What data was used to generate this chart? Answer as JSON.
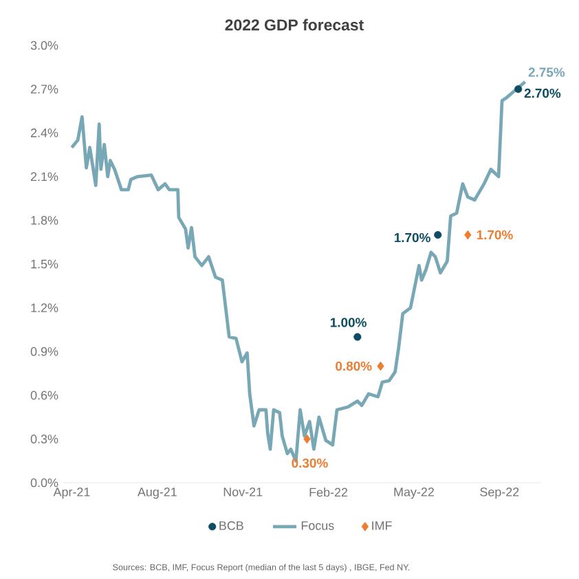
{
  "chart_data": {
    "type": "line",
    "title": "2022 GDP forecast",
    "xlim": [
      "2021-04-15",
      "2022-10-25"
    ],
    "xticks": [
      {
        "value": "2021-04-25",
        "label": "Apr-21"
      },
      {
        "value": "2021-08-03",
        "label": "Aug-21"
      },
      {
        "value": "2021-11-11",
        "label": "Nov-21"
      },
      {
        "value": "2022-02-19",
        "label": "Feb-22"
      },
      {
        "value": "2022-05-30",
        "label": "May-22"
      },
      {
        "value": "2022-09-07",
        "label": "Sep-22"
      }
    ],
    "ylim": [
      0,
      3.0
    ],
    "yticks": [
      {
        "value": 0,
        "label": "0.0%"
      },
      {
        "value": 0.3,
        "label": "0.3%"
      },
      {
        "value": 0.6,
        "label": "0.6%"
      },
      {
        "value": 0.9,
        "label": "0.9%"
      },
      {
        "value": 1.2,
        "label": "1.2%"
      },
      {
        "value": 1.5,
        "label": "1.5%"
      },
      {
        "value": 1.8,
        "label": "1.8%"
      },
      {
        "value": 2.1,
        "label": "2.1%"
      },
      {
        "value": 2.4,
        "label": "2.4%"
      },
      {
        "value": 2.7,
        "label": "2.7%"
      },
      {
        "value": 3.0,
        "label": "3.0%"
      }
    ],
    "legend": "bottom",
    "series": [
      {
        "name": "BCB",
        "type": "scatter",
        "marker": "circle",
        "color": "#0e4c62",
        "x": [
          "2022-03-25",
          "2022-06-27",
          "2022-09-29"
        ],
        "values": [
          1.0,
          1.7,
          2.7
        ],
        "value_labels": [
          "1.00%",
          "1.70%",
          "2.70%"
        ]
      },
      {
        "name": "Focus",
        "marker": "none",
        "line_style": "solid",
        "color": "#78a7b5",
        "x": [
          "2021-04-25",
          "2021-05-02",
          "2021-05-07",
          "2021-05-12",
          "2021-05-16",
          "2021-05-23",
          "2021-05-27",
          "2021-05-29",
          "2021-06-02",
          "2021-06-06",
          "2021-06-09",
          "2021-06-14",
          "2021-06-22",
          "2021-06-30",
          "2021-07-03",
          "2021-07-11",
          "2021-07-27",
          "2021-08-04",
          "2021-08-12",
          "2021-08-17",
          "2021-08-27",
          "2021-08-28",
          "2021-09-05",
          "2021-09-08",
          "2021-09-12",
          "2021-09-16",
          "2021-09-24",
          "2021-10-02",
          "2021-10-10",
          "2021-10-18",
          "2021-10-26",
          "2021-11-03",
          "2021-11-10",
          "2021-11-16",
          "2021-11-19",
          "2021-11-24",
          "2021-11-30",
          "2021-12-08",
          "2021-12-10",
          "2021-12-13",
          "2021-12-17",
          "2021-12-24",
          "2021-12-27",
          "2022-01-02",
          "2022-01-06",
          "2022-01-12",
          "2022-01-17",
          "2022-01-22",
          "2022-01-28",
          "2022-02-02",
          "2022-02-08",
          "2022-02-16",
          "2022-02-24",
          "2022-03-01",
          "2022-03-14",
          "2022-03-25",
          "2022-03-30",
          "2022-04-07",
          "2022-04-18",
          "2022-04-23",
          "2022-05-01",
          "2022-05-08",
          "2022-05-12",
          "2022-05-17",
          "2022-05-26",
          "2022-06-05",
          "2022-06-08",
          "2022-06-13",
          "2022-06-19",
          "2022-06-24",
          "2022-06-30",
          "2022-07-08",
          "2022-07-12",
          "2022-07-19",
          "2022-07-26",
          "2022-08-01",
          "2022-08-09",
          "2022-08-20",
          "2022-08-28",
          "2022-09-06",
          "2022-09-10",
          "2022-09-15",
          "2022-09-21",
          "2022-09-29",
          "2022-10-07"
        ],
        "values": [
          2.3,
          2.35,
          2.51,
          2.16,
          2.3,
          2.04,
          2.46,
          2.15,
          2.32,
          2.1,
          2.21,
          2.15,
          2.01,
          2.01,
          2.08,
          2.1,
          2.11,
          2.01,
          2.05,
          2.01,
          2.01,
          1.82,
          1.74,
          1.61,
          1.75,
          1.55,
          1.49,
          1.55,
          1.41,
          1.39,
          1.0,
          0.99,
          0.83,
          0.89,
          0.61,
          0.39,
          0.5,
          0.5,
          0.34,
          0.23,
          0.5,
          0.48,
          0.32,
          0.2,
          0.23,
          0.15,
          0.5,
          0.32,
          0.42,
          0.23,
          0.45,
          0.29,
          0.26,
          0.5,
          0.52,
          0.56,
          0.53,
          0.61,
          0.59,
          0.69,
          0.7,
          0.76,
          0.92,
          1.16,
          1.2,
          1.49,
          1.39,
          1.46,
          1.58,
          1.55,
          1.44,
          1.52,
          1.83,
          1.85,
          2.05,
          1.96,
          1.94,
          2.05,
          2.15,
          2.1,
          2.62,
          2.64,
          2.67,
          2.71,
          2.75
        ],
        "value_labels": [
          null,
          null,
          null,
          null,
          null,
          null,
          null,
          null,
          null,
          null,
          null,
          null,
          null,
          null,
          null,
          null,
          null,
          null,
          null,
          null,
          null,
          null,
          null,
          null,
          null,
          null,
          null,
          null,
          null,
          null,
          null,
          null,
          null,
          null,
          null,
          null,
          null,
          null,
          null,
          null,
          null,
          null,
          null,
          null,
          null,
          null,
          null,
          null,
          null,
          null,
          null,
          null,
          null,
          null,
          null,
          null,
          null,
          null,
          null,
          null,
          null,
          null,
          null,
          null,
          null,
          null,
          null,
          null,
          null,
          null,
          null,
          null,
          null,
          null,
          null,
          null,
          null,
          null,
          null,
          null,
          null,
          null,
          null,
          null,
          "2.75%"
        ]
      },
      {
        "name": "IMF",
        "type": "scatter",
        "marker": "diamond",
        "color": "#ed7d31",
        "x": [
          "2022-01-25",
          "2022-04-21",
          "2022-08-01"
        ],
        "values": [
          0.3,
          0.8,
          1.7
        ],
        "value_labels": [
          "0.30%",
          "0.80%",
          "1.70%"
        ]
      }
    ],
    "annotations": [
      "Sources: BCB, IMF, Focus Report (median of the last 5 days) , IBGE, Fed NY."
    ]
  }
}
